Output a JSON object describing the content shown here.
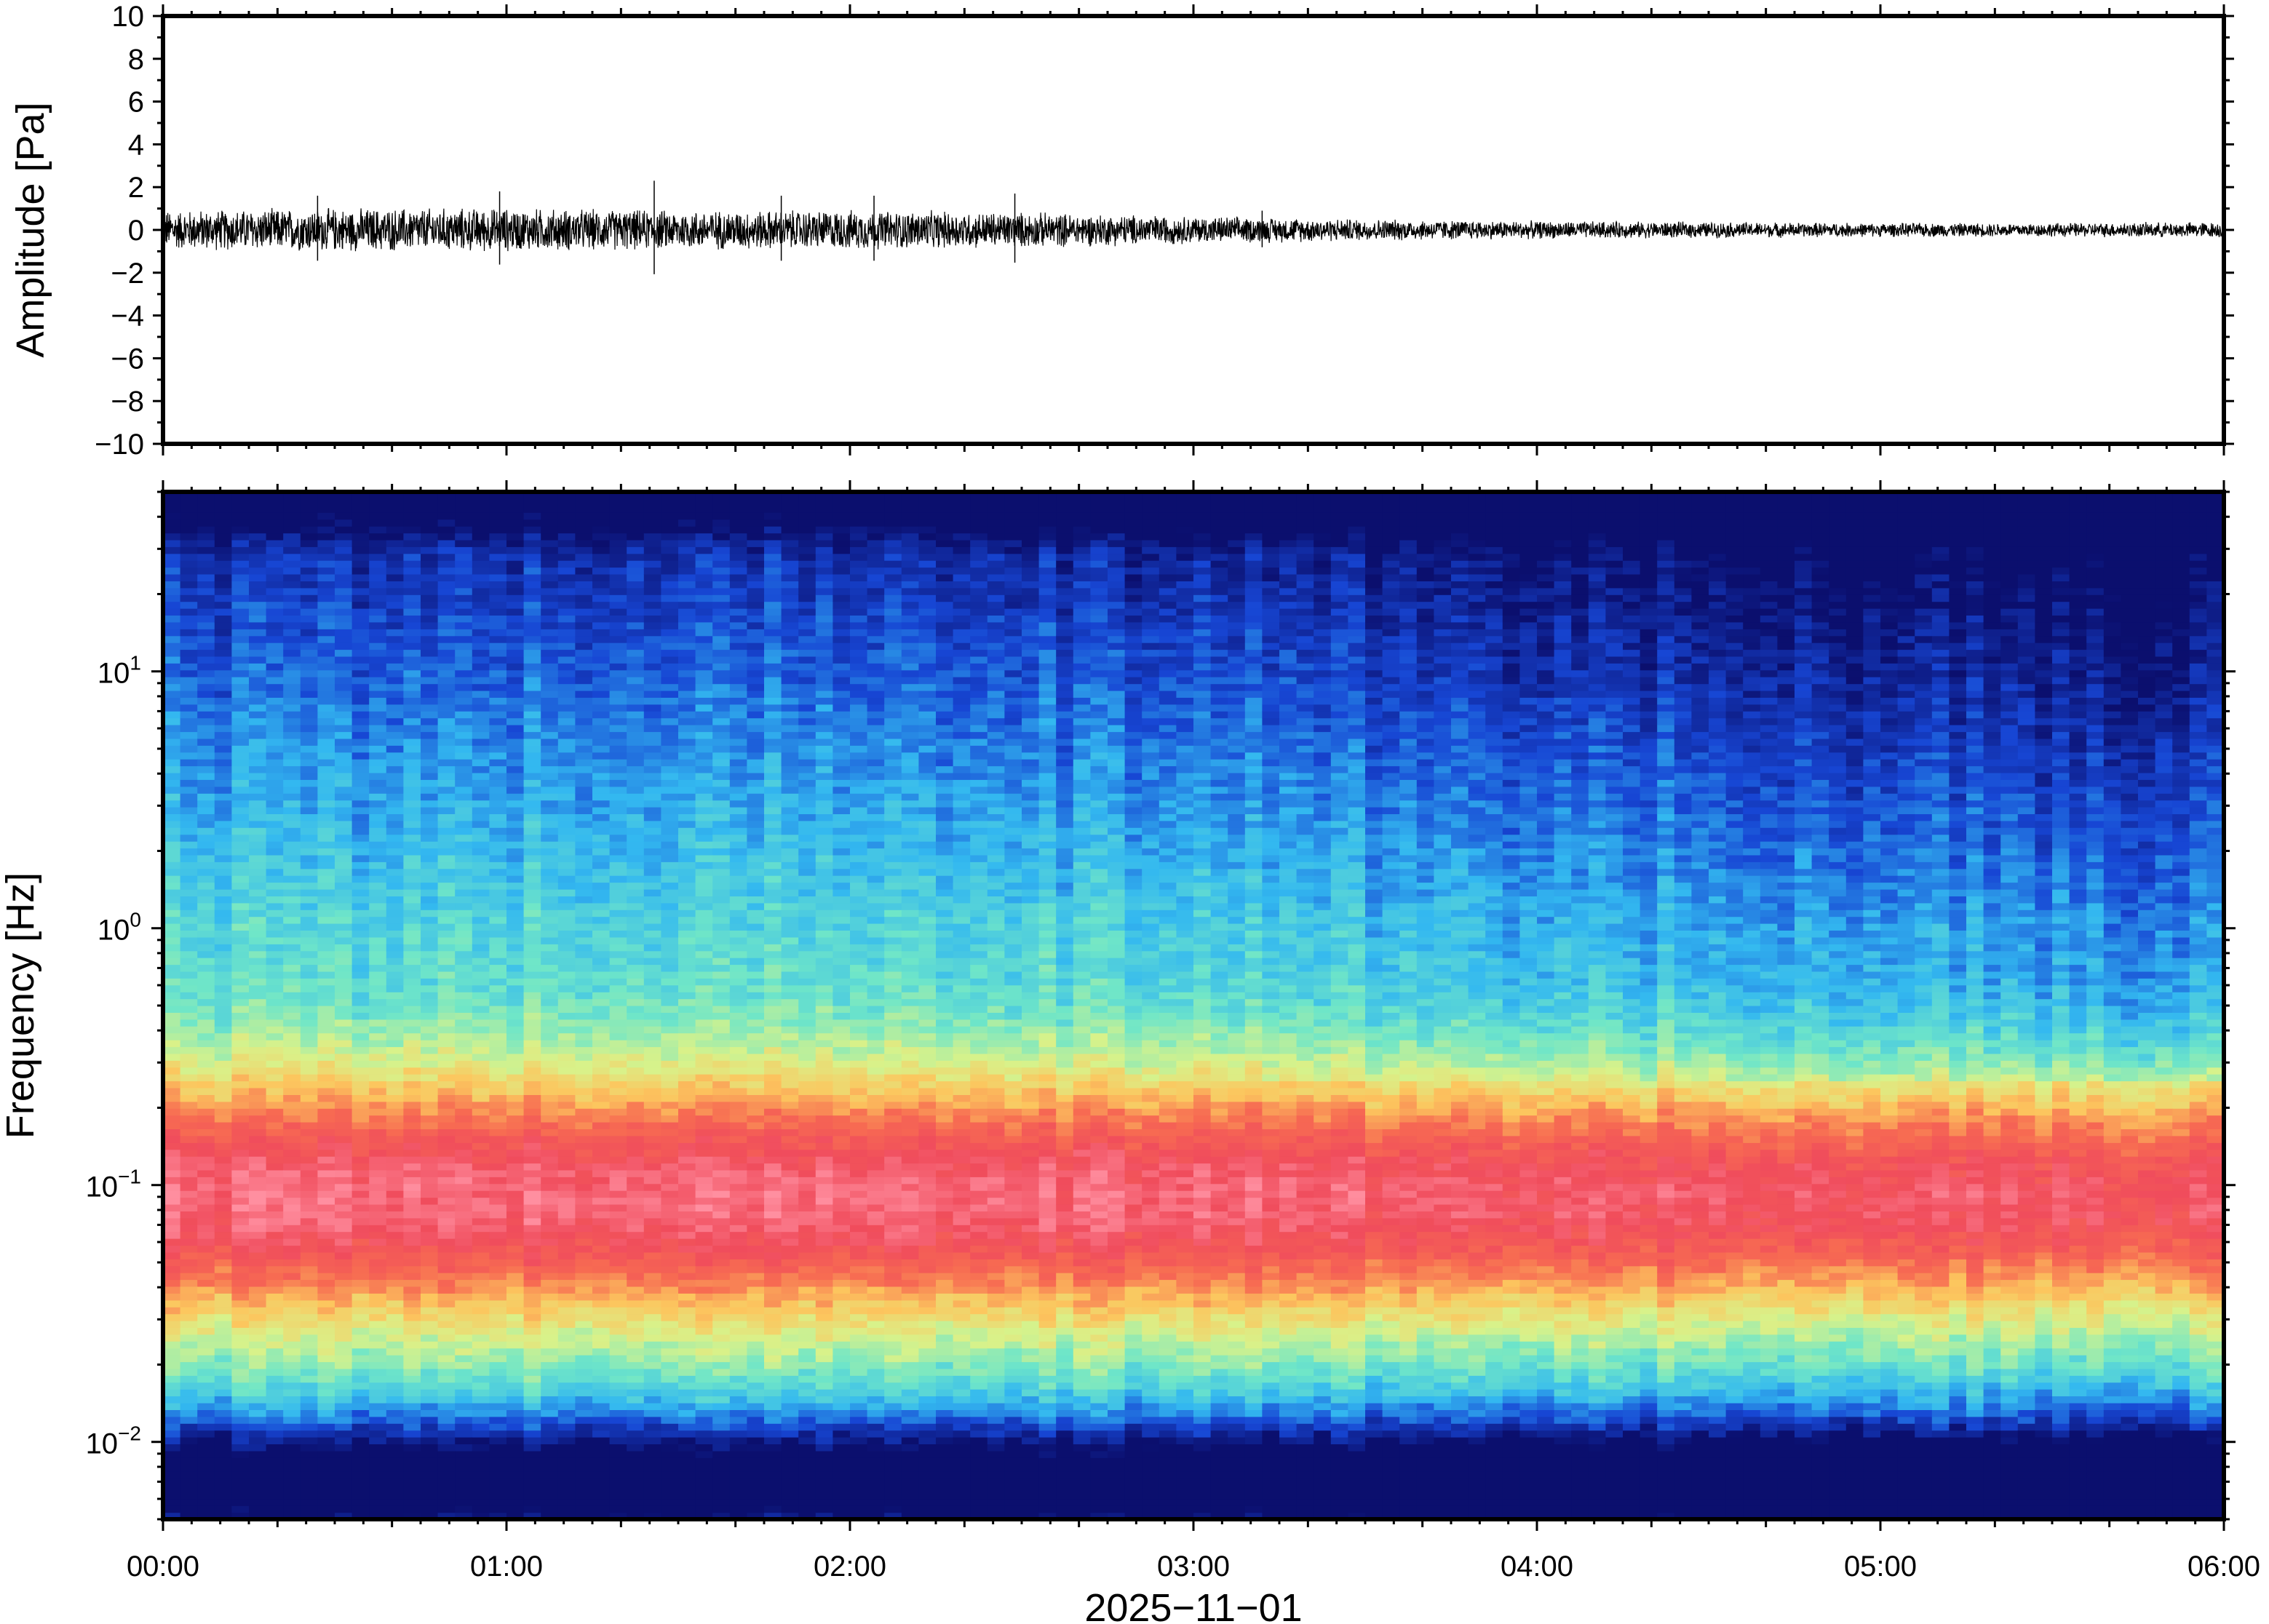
{
  "chart_data": [
    {
      "type": "line",
      "panel": "waveform",
      "ylabel": "Amplitude [Pa]",
      "ylim": [
        -10,
        10
      ],
      "yticks": [
        "10",
        "8",
        "6",
        "4",
        "2",
        "0",
        "−2",
        "−4",
        "−6",
        "−8",
        "−10"
      ],
      "ytick_values": [
        10,
        8,
        6,
        4,
        2,
        0,
        -2,
        -4,
        -6,
        -8,
        -10
      ],
      "xlim_hours": [
        0,
        6
      ],
      "series": [
        {
          "envelope_time_hours": [
            0,
            0.5,
            1.0,
            1.5,
            2.0,
            2.5,
            3.0,
            3.5,
            4.0,
            4.5,
            5.0,
            5.5,
            6.0
          ],
          "envelope_amplitude_pa": [
            1.0,
            1.1,
            1.1,
            1.0,
            1.0,
            0.9,
            0.7,
            0.55,
            0.45,
            0.4,
            0.35,
            0.35,
            0.4
          ],
          "peaks_time_hours": [
            0.45,
            0.98,
            1.43,
            1.8,
            2.07,
            2.48,
            3.2
          ],
          "peaks_amplitude_pa": [
            1.6,
            1.8,
            2.3,
            1.6,
            1.6,
            1.7,
            0.9
          ]
        }
      ],
      "color": "#000000"
    },
    {
      "type": "heatmap",
      "panel": "spectrogram",
      "ylabel": "Frequency [Hz]",
      "yscale": "log",
      "ylim": [
        0.005,
        50
      ],
      "yticks": [
        {
          "value": 10,
          "base": "10",
          "exp": "1"
        },
        {
          "value": 1,
          "base": "10",
          "exp": "0"
        },
        {
          "value": 0.1,
          "base": "10",
          "exp": "−1"
        },
        {
          "value": 0.01,
          "base": "10",
          "exp": "−2"
        }
      ],
      "xlim_hours": [
        0,
        6
      ],
      "colormap": "rainbow (dark blue = low power, red/pink = high power)",
      "colormap_stops": [
        "#0b0f6e",
        "#1746d4",
        "#33b8f0",
        "#6fe6c8",
        "#d8f28a",
        "#fcc65e",
        "#f76b52",
        "#f04c5c",
        "#ff8fa0"
      ],
      "features": {
        "peak_band_hz": [
          0.04,
          0.25
        ],
        "high_freq_dark_from_hz": 30
      }
    }
  ],
  "xaxis": {
    "ticks": [
      "00:00",
      "01:00",
      "02:00",
      "03:00",
      "04:00",
      "05:00",
      "06:00"
    ],
    "tick_hours": [
      0,
      1,
      2,
      3,
      4,
      5,
      6
    ],
    "label": "2025−11−01"
  }
}
